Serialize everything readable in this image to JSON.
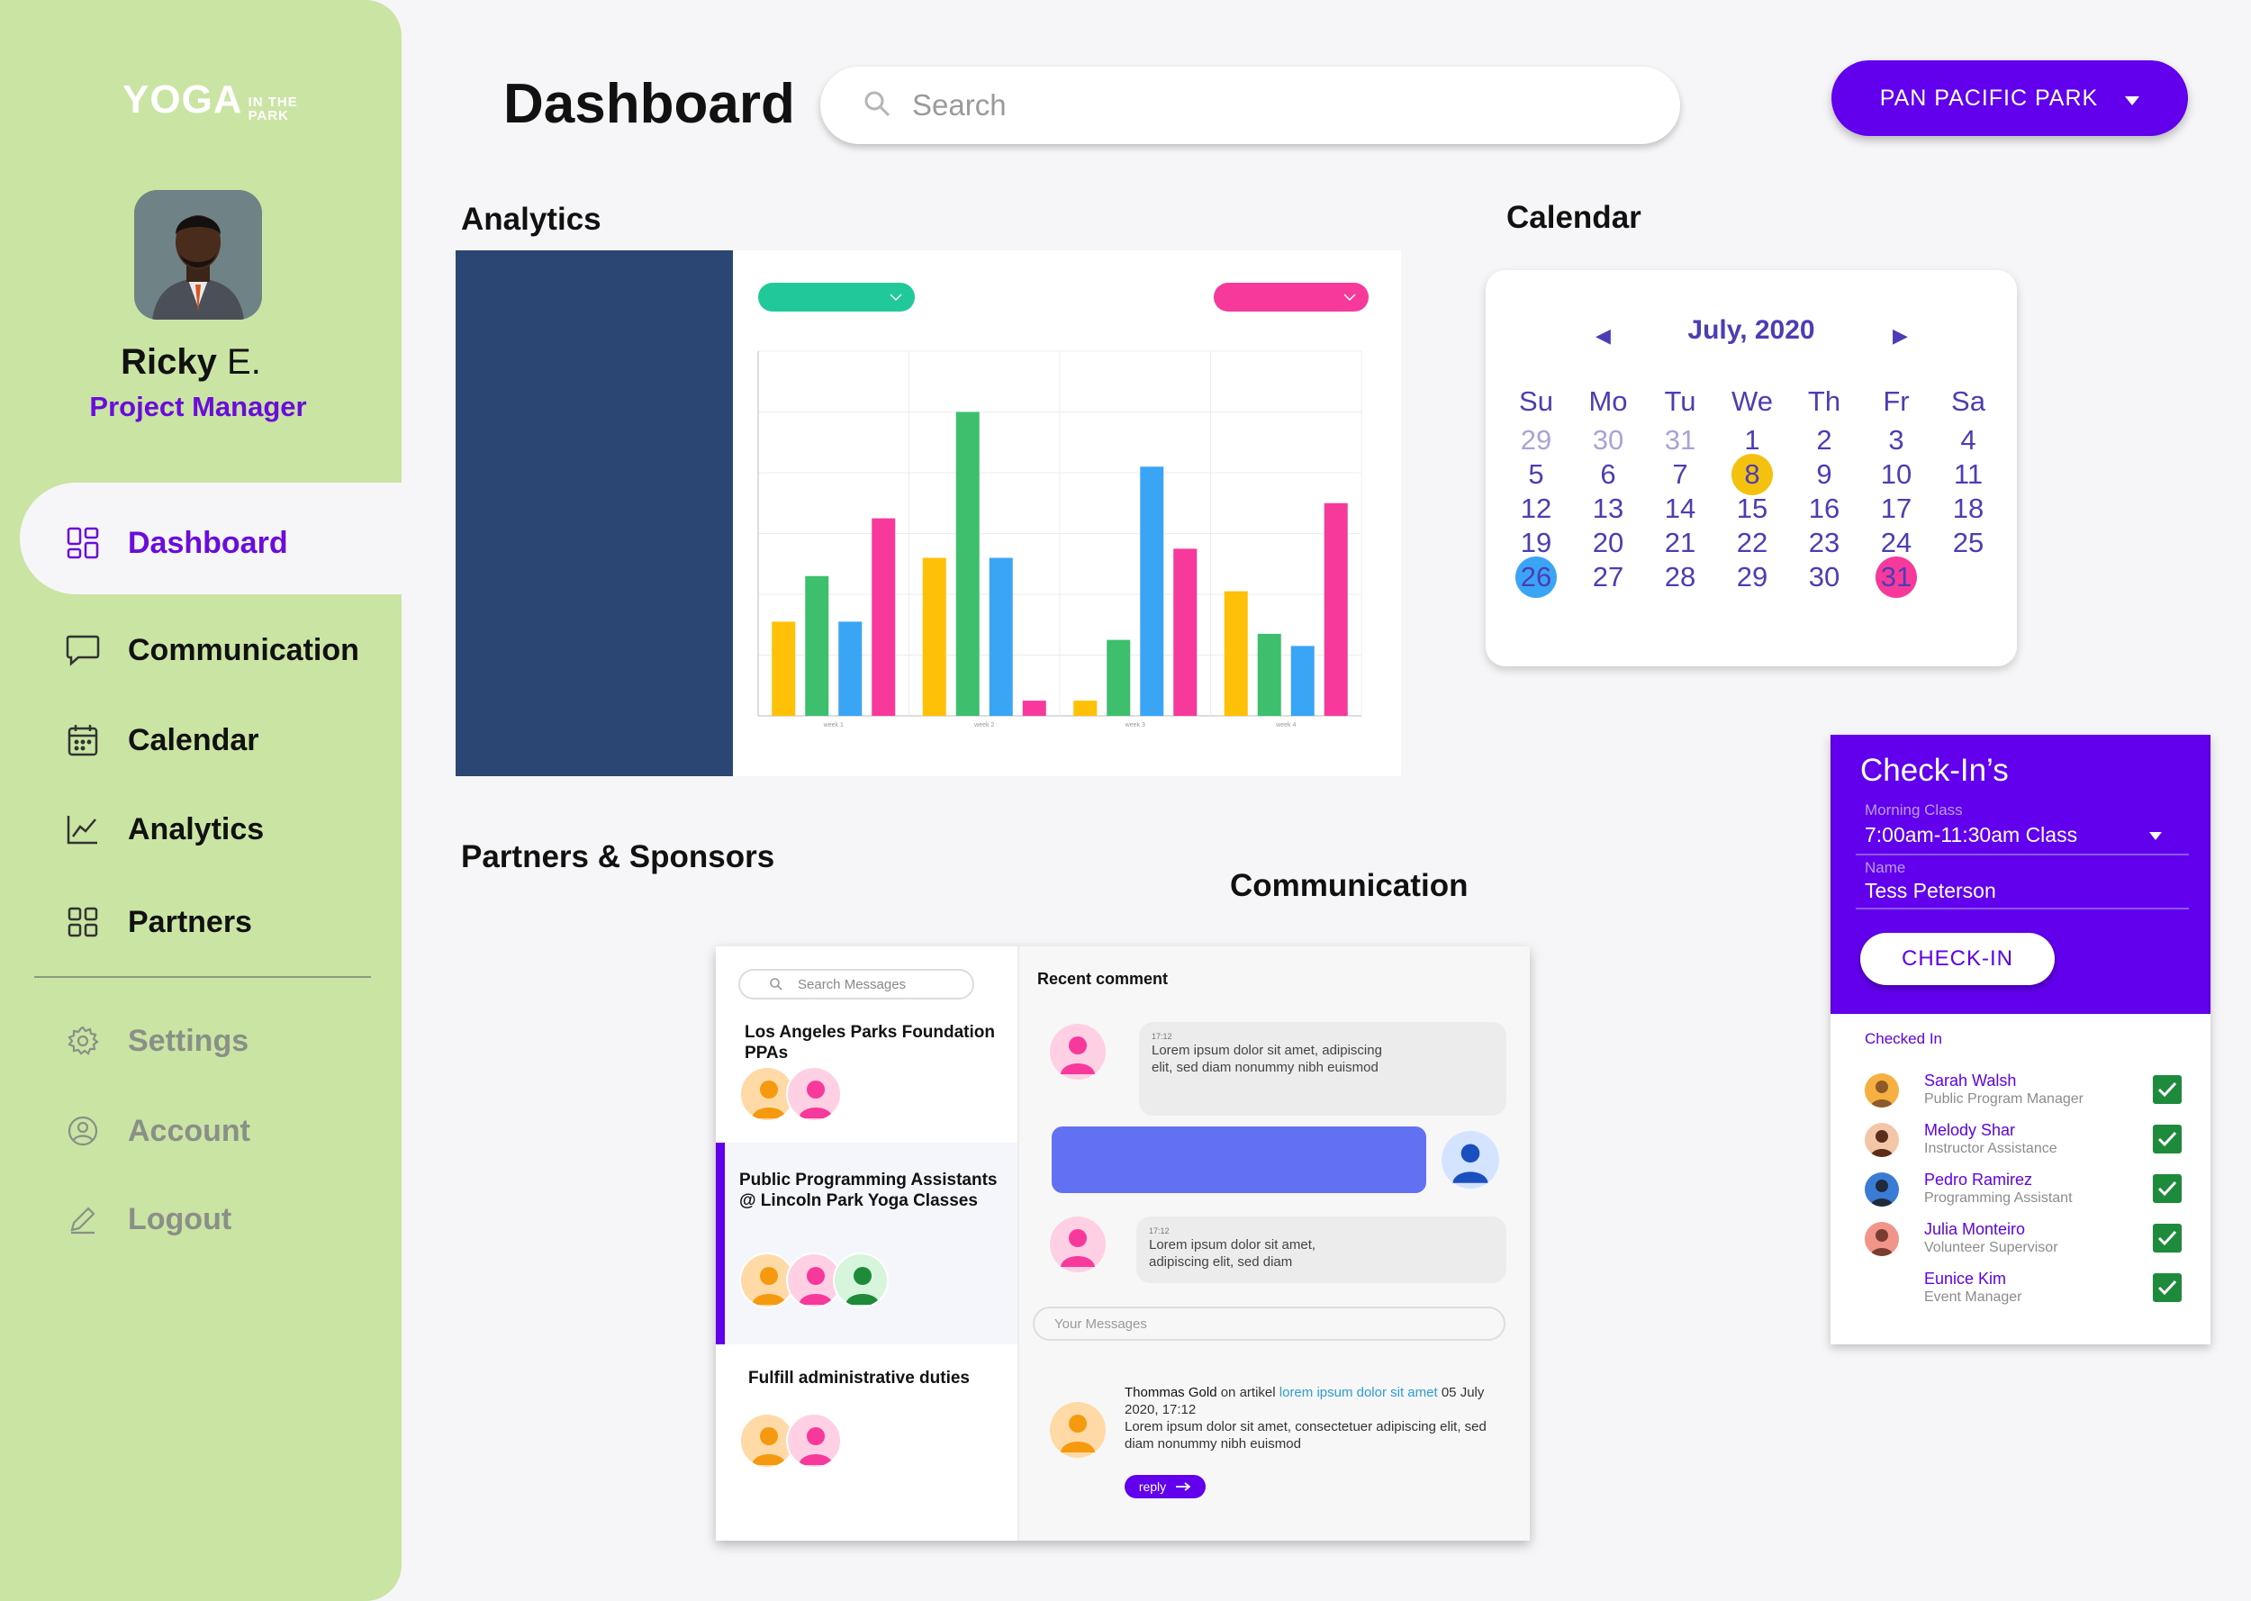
{
  "brand": {
    "name": "YOGA",
    "tag_line1": "IN THE",
    "tag_line2": "PARK"
  },
  "user": {
    "first_name": "Ricky",
    "last_name": "E.",
    "role": "Project Manager"
  },
  "nav": {
    "items": [
      {
        "label": "Dashboard",
        "icon": "grid-icon"
      },
      {
        "label": "Communication",
        "icon": "chat-icon"
      },
      {
        "label": "Calendar",
        "icon": "calendar-icon"
      },
      {
        "label": "Analytics",
        "icon": "line-chart-icon"
      },
      {
        "label": "Partners",
        "icon": "grid-icon"
      }
    ],
    "secondary": [
      {
        "label": "Settings",
        "icon": "gear-icon"
      },
      {
        "label": "Account",
        "icon": "user-circle-icon"
      },
      {
        "label": "Logout",
        "icon": "pencil-icon"
      }
    ]
  },
  "header": {
    "title": "Dashboard",
    "search_placeholder": "Search",
    "park_select": "PAN PACIFIC PARK"
  },
  "sections": {
    "analytics": "Analytics",
    "calendar": "Calendar",
    "partners": "Partners & Sponsors",
    "communication": "Communication"
  },
  "chart_data": {
    "type": "bar",
    "categories": [
      "week 1",
      "week 2",
      "week 3",
      "week 4"
    ],
    "series": [
      {
        "color": "#ffc107",
        "values": [
          31,
          52,
          5,
          41
        ]
      },
      {
        "color": "#3dbf6e",
        "values": [
          46,
          100,
          25,
          27
        ]
      },
      {
        "color": "#3aa5f5",
        "values": [
          31,
          52,
          82,
          23
        ]
      },
      {
        "color": "#f7399b",
        "values": [
          65,
          5,
          55,
          70
        ]
      }
    ],
    "ylim": [
      0,
      120
    ],
    "grid": true
  },
  "calendar": {
    "month_label": "July, 2020",
    "weekdays": [
      "Su",
      "Mo",
      "Tu",
      "We",
      "Th",
      "Fr",
      "Sa"
    ],
    "days": [
      {
        "d": "29",
        "o": true
      },
      {
        "d": "30",
        "o": true
      },
      {
        "d": "31",
        "o": true
      },
      {
        "d": "1"
      },
      {
        "d": "2"
      },
      {
        "d": "3"
      },
      {
        "d": "4"
      },
      {
        "d": "5"
      },
      {
        "d": "6"
      },
      {
        "d": "7"
      },
      {
        "d": "8",
        "mark": "#f5c10f"
      },
      {
        "d": "9"
      },
      {
        "d": "10"
      },
      {
        "d": "11"
      },
      {
        "d": "12"
      },
      {
        "d": "13"
      },
      {
        "d": "14"
      },
      {
        "d": "15"
      },
      {
        "d": "16"
      },
      {
        "d": "17"
      },
      {
        "d": "18"
      },
      {
        "d": "19"
      },
      {
        "d": "20"
      },
      {
        "d": "21"
      },
      {
        "d": "22"
      },
      {
        "d": "23"
      },
      {
        "d": "24"
      },
      {
        "d": "25"
      },
      {
        "d": "26",
        "mark": "#3aa5f5"
      },
      {
        "d": "27"
      },
      {
        "d": "28"
      },
      {
        "d": "29"
      },
      {
        "d": "30"
      },
      {
        "d": "31",
        "mark": "#f7399b"
      },
      {
        "d": ""
      }
    ]
  },
  "checkins": {
    "title": "Check-In’s",
    "class_label": "Morning Class",
    "class_value": "7:00am-11:30am Class",
    "name_label": "Name",
    "name_value": "Tess Peterson",
    "button": "CHECK-IN",
    "checked_label": "Checked In",
    "people": [
      {
        "name": "Sarah Walsh",
        "role": "Public Program Manager"
      },
      {
        "name": "Melody Shar",
        "role": "Instructor Assistance"
      },
      {
        "name": "Pedro Ramirez",
        "role": "Programming Assistant"
      },
      {
        "name": "Julia Monteiro",
        "role": "Volunteer Supervisor"
      },
      {
        "name": "Eunice Kim",
        "role": "Event Manager"
      }
    ]
  },
  "communication": {
    "search_placeholder": "Search Messages",
    "threads": [
      {
        "title_line1": "Los Angeles Parks Foundation",
        "title_line2": "PPAs"
      },
      {
        "title_line1": "Public Programming Assistants",
        "title_line2": "@ Lincoln Park Yoga Classes"
      },
      {
        "title_line1": "Fulfill administrative duties",
        "title_line2": ""
      }
    ],
    "recent_label": "Recent comment",
    "msg1_time": "17:12",
    "msg1_text": "Lorem ipsum dolor sit amet, adipiscing elit, sed diam nonummy nibh euismod",
    "msg2_time": "17:12",
    "msg2_text": "Lorem ipsum dolor sit amet, adipiscing elit, sed diam",
    "input_placeholder": "Your Messages",
    "comment_author": "Thommas Gold",
    "comment_on": "on artikel",
    "comment_link": "lorem ipsum dolor sit amet",
    "comment_date": "05 July 2020, 17:12",
    "comment_text": "Lorem ipsum dolor sit amet, consectetuer adipiscing elit, sed diam nonummy nibh euismod",
    "reply_label": "reply"
  }
}
